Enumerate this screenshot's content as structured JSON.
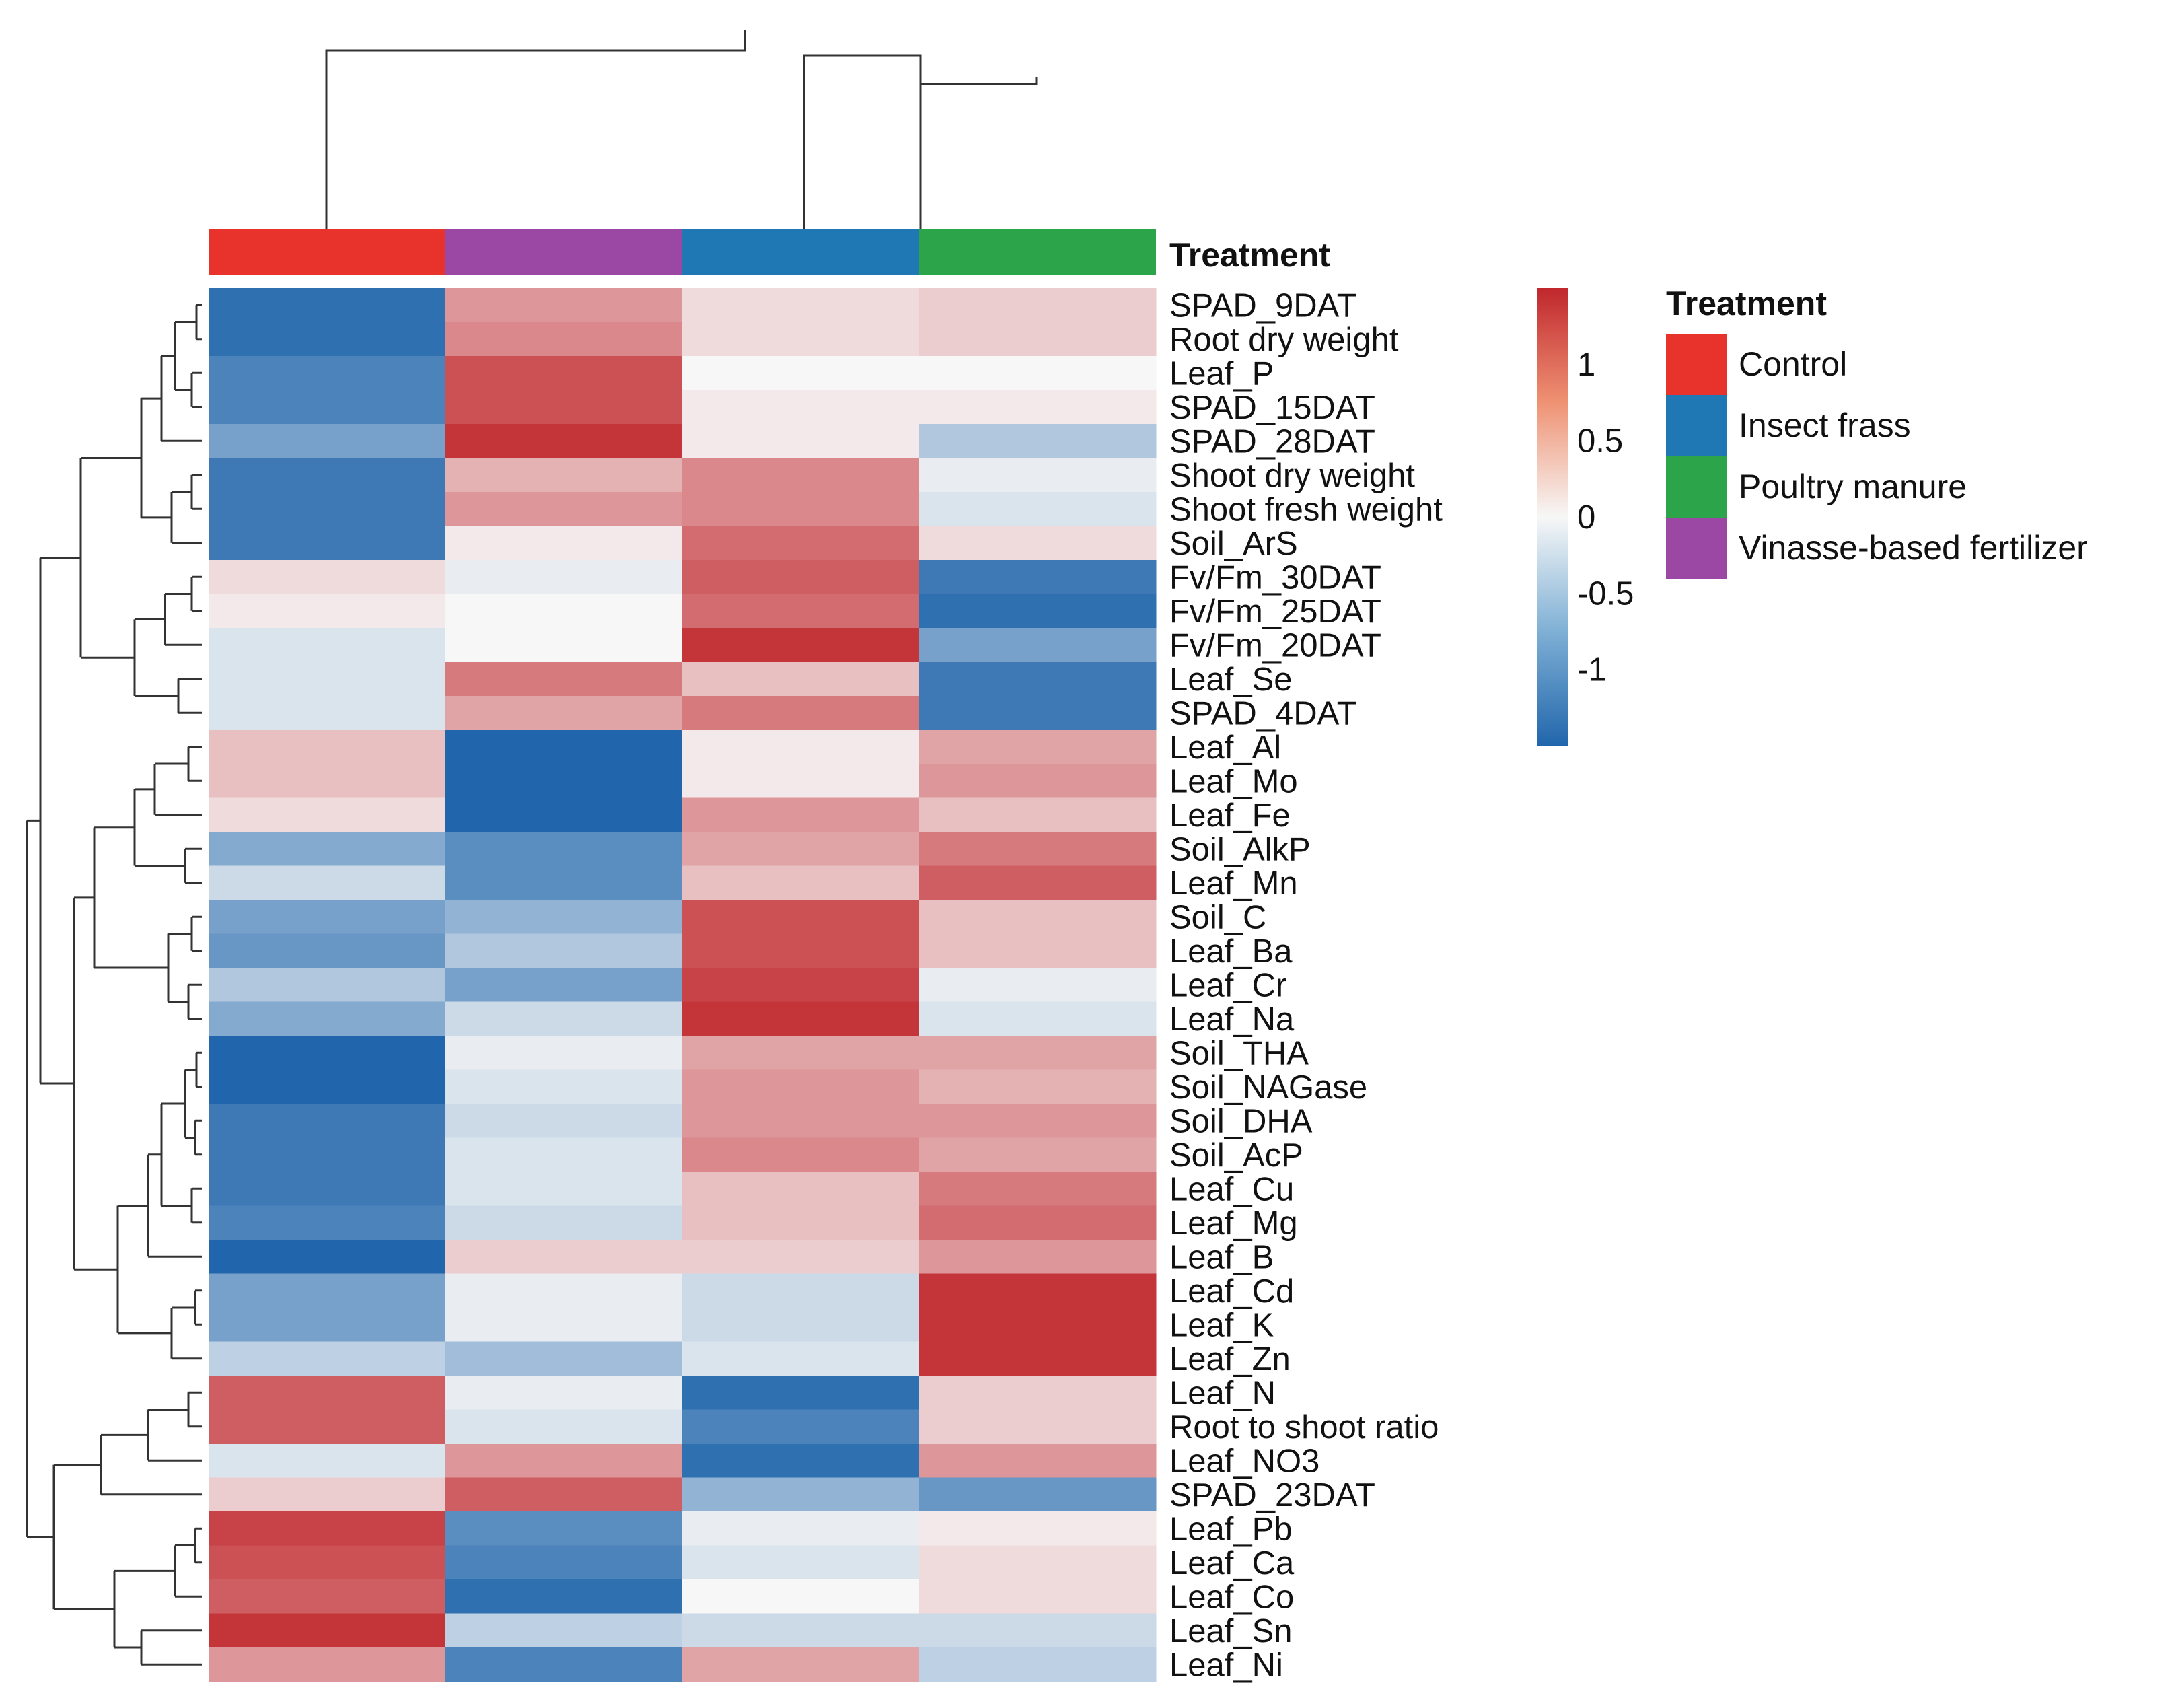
{
  "chart_data": {
    "type": "heatmap",
    "columns": [
      "Control",
      "Vinasse-based fertilizer",
      "Insect frass",
      "Poultry manure"
    ],
    "column_annotation_title": "Treatment",
    "rows": [
      "SPAD_9DAT",
      "Root dry weight",
      "Leaf_P",
      "SPAD_15DAT",
      "SPAD_28DAT",
      "Shoot dry weight",
      "Shoot fresh weight",
      "Soil_ArS",
      "Fv/Fm_30DAT",
      "Fv/Fm_25DAT",
      "Fv/Fm_20DAT",
      "Leaf_Se",
      "SPAD_4DAT",
      "Leaf_Al",
      "Leaf_Mo",
      "Leaf_Fe",
      "Soil_AlkP",
      "Leaf_Mn",
      "Soil_C",
      "Leaf_Ba",
      "Leaf_Cr",
      "Leaf_Na",
      "Soil_THA",
      "Soil_NAGase",
      "Soil_DHA",
      "Soil_AcP",
      "Leaf_Cu",
      "Leaf_Mg",
      "Leaf_B",
      "Leaf_Cd",
      "Leaf_K",
      "Leaf_Zn",
      "Leaf_N",
      "Root to shoot ratio",
      "Leaf_NO3",
      "SPAD_23DAT",
      "Leaf_Pb",
      "Leaf_Ca",
      "Leaf_Co",
      "Leaf_Sn",
      "Leaf_Ni"
    ],
    "values": [
      [
        -1.4,
        0.7,
        0.2,
        0.3
      ],
      [
        -1.4,
        0.8,
        0.2,
        0.3
      ],
      [
        -1.2,
        1.2,
        0.0,
        0.0
      ],
      [
        -1.2,
        1.2,
        0.1,
        0.1
      ],
      [
        -0.9,
        1.4,
        0.1,
        -0.5
      ],
      [
        -1.3,
        0.5,
        0.8,
        -0.1
      ],
      [
        -1.3,
        0.7,
        0.8,
        -0.2
      ],
      [
        -1.3,
        0.1,
        1.0,
        0.2
      ],
      [
        0.2,
        -0.1,
        1.1,
        -1.3
      ],
      [
        0.1,
        0.0,
        1.0,
        -1.4
      ],
      [
        -0.2,
        0.0,
        1.4,
        -0.9
      ],
      [
        -0.2,
        0.9,
        0.4,
        -1.3
      ],
      [
        -0.2,
        0.6,
        0.9,
        -1.3
      ],
      [
        0.4,
        -1.5,
        0.1,
        0.6
      ],
      [
        0.4,
        -1.5,
        0.1,
        0.7
      ],
      [
        0.2,
        -1.5,
        0.7,
        0.4
      ],
      [
        -0.8,
        -1.1,
        0.6,
        0.9
      ],
      [
        -0.3,
        -1.1,
        0.4,
        1.1
      ],
      [
        -0.9,
        -0.7,
        1.2,
        0.4
      ],
      [
        -1.0,
        -0.5,
        1.2,
        0.4
      ],
      [
        -0.5,
        -0.9,
        1.3,
        -0.1
      ],
      [
        -0.8,
        -0.3,
        1.4,
        -0.2
      ],
      [
        -1.5,
        -0.1,
        0.6,
        0.6
      ],
      [
        -1.5,
        -0.2,
        0.7,
        0.5
      ],
      [
        -1.3,
        -0.3,
        0.7,
        0.7
      ],
      [
        -1.3,
        -0.2,
        0.8,
        0.6
      ],
      [
        -1.3,
        -0.2,
        0.4,
        0.9
      ],
      [
        -1.2,
        -0.3,
        0.4,
        1.0
      ],
      [
        -1.5,
        0.3,
        0.3,
        0.7
      ],
      [
        -0.9,
        -0.1,
        -0.3,
        1.4
      ],
      [
        -0.9,
        -0.1,
        -0.3,
        1.4
      ],
      [
        -0.4,
        -0.6,
        -0.2,
        1.4
      ],
      [
        1.1,
        -0.1,
        -1.4,
        0.3
      ],
      [
        1.1,
        -0.2,
        -1.2,
        0.3
      ],
      [
        -0.2,
        0.7,
        -1.4,
        0.7
      ],
      [
        0.3,
        1.1,
        -0.7,
        -1.0
      ],
      [
        1.3,
        -1.1,
        -0.1,
        0.1
      ],
      [
        1.2,
        -1.2,
        -0.2,
        0.2
      ],
      [
        1.1,
        -1.4,
        0.0,
        0.2
      ],
      [
        1.4,
        -0.4,
        -0.3,
        -0.3
      ],
      [
        0.7,
        -1.2,
        0.6,
        -0.4
      ]
    ],
    "color_scale": {
      "ticks": [
        1,
        0.5,
        0,
        -0.5,
        -1
      ],
      "tick_labels": [
        "1",
        "0.5",
        "0",
        "-0.5",
        "-1"
      ],
      "range": [
        -1.5,
        1.5
      ],
      "low_color": "#2166ac",
      "mid_color": "#f7f7f7",
      "high_color": "#c0272d"
    },
    "legend": {
      "title": "Treatment",
      "items": [
        {
          "label": "Control",
          "color": "#e8332d"
        },
        {
          "label": "Insect frass",
          "color": "#1f78b4"
        },
        {
          "label": "Poultry manure",
          "color": "#2ca44a"
        },
        {
          "label": "Vinasse-based fertilizer",
          "color": "#9a48a3"
        }
      ]
    }
  }
}
